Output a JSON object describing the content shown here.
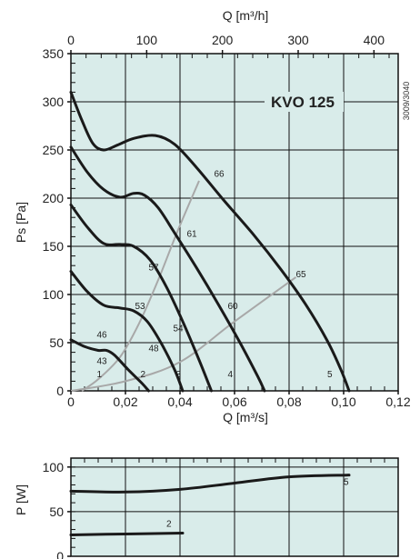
{
  "colors": {
    "plot_background": "#d9ecea",
    "grid": "#111111",
    "fan_curve": "#1a1a1a",
    "system_curve": "#a8a8a8"
  },
  "chart_data": [
    {
      "type": "line",
      "title": "KVO 125",
      "code": "3009/3040",
      "xlabel": "Q [m³/s]",
      "ylabel": "Ps [Pa]",
      "x2label": "Q [m³/h]",
      "xlim": [
        0,
        0.12
      ],
      "ylim": [
        0,
        350
      ],
      "x2lim": [
        0,
        432
      ],
      "xticks": [
        "0",
        "0,02",
        "0,04",
        "0,06",
        "0,08",
        "0,10",
        "0,12"
      ],
      "xtick_values": [
        0,
        0.02,
        0.04,
        0.06,
        0.08,
        0.1,
        0.12
      ],
      "x2ticks": [
        "0",
        "100",
        "200",
        "300",
        "400"
      ],
      "x2tick_values": [
        0,
        100,
        200,
        300,
        400
      ],
      "yticks": [
        "0",
        "50",
        "100",
        "150",
        "200",
        "250",
        "300",
        "350"
      ],
      "ytick_values": [
        0,
        50,
        100,
        150,
        200,
        250,
        300,
        350
      ],
      "grid": true,
      "series": [
        {
          "name": "1",
          "kind": "fan",
          "points": [
            [
              0,
              53
            ],
            [
              0.005,
              46
            ],
            [
              0.01,
              42
            ],
            [
              0.013,
              42
            ],
            [
              0.016,
              37
            ],
            [
              0.021,
              22
            ],
            [
              0.026,
              8
            ],
            [
              0.0285,
              0
            ]
          ]
        },
        {
          "name": "2",
          "kind": "fan",
          "points": [
            [
              0,
              124
            ],
            [
              0.006,
              103
            ],
            [
              0.012,
              89
            ],
            [
              0.018,
              86
            ],
            [
              0.023,
              83
            ],
            [
              0.028,
              72
            ],
            [
              0.033,
              50
            ],
            [
              0.038,
              22
            ],
            [
              0.041,
              0
            ]
          ]
        },
        {
          "name": "3",
          "kind": "fan",
          "points": [
            [
              0,
              193
            ],
            [
              0.006,
              170
            ],
            [
              0.012,
              153
            ],
            [
              0.018,
              152
            ],
            [
              0.023,
              150
            ],
            [
              0.029,
              136
            ],
            [
              0.035,
              108
            ],
            [
              0.041,
              72
            ],
            [
              0.047,
              32
            ],
            [
              0.0515,
              0
            ]
          ]
        },
        {
          "name": "4",
          "kind": "fan",
          "points": [
            [
              0,
              253
            ],
            [
              0.006,
              227
            ],
            [
              0.012,
              209
            ],
            [
              0.018,
              201
            ],
            [
              0.023,
              205
            ],
            [
              0.027,
              203
            ],
            [
              0.032,
              190
            ],
            [
              0.038,
              164
            ],
            [
              0.046,
              128
            ],
            [
              0.054,
              90
            ],
            [
              0.062,
              50
            ],
            [
              0.0685,
              15
            ],
            [
              0.071,
              0
            ]
          ]
        },
        {
          "name": "5",
          "kind": "fan",
          "points": [
            [
              0,
              310
            ],
            [
              0.004,
              281
            ],
            [
              0.008,
              257
            ],
            [
              0.012,
              250
            ],
            [
              0.017,
              255
            ],
            [
              0.023,
              262
            ],
            [
              0.031,
              265
            ],
            [
              0.038,
              256
            ],
            [
              0.046,
              232
            ],
            [
              0.056,
              198
            ],
            [
              0.067,
              162
            ],
            [
              0.077,
              126
            ],
            [
              0.086,
              90
            ],
            [
              0.094,
              52
            ],
            [
              0.099,
              22
            ],
            [
              0.102,
              0
            ]
          ]
        },
        {
          "name": "sys-low",
          "kind": "system",
          "points": [
            [
              0,
              0
            ],
            [
              0.02,
              10
            ],
            [
              0.04,
              30
            ],
            [
              0.06,
              72
            ],
            [
              0.0825,
              118
            ]
          ]
        },
        {
          "name": "sys-high",
          "kind": "system",
          "points": [
            [
              0.004,
              0
            ],
            [
              0.01,
              12
            ],
            [
              0.018,
              35
            ],
            [
              0.025,
              70
            ],
            [
              0.032,
              115
            ],
            [
              0.039,
              165
            ],
            [
              0.047,
              218
            ]
          ]
        }
      ],
      "curve_labels": [
        {
          "text": "1",
          "x": 0.0095,
          "y": 14
        },
        {
          "text": "2",
          "x": 0.0255,
          "y": 14
        },
        {
          "text": "3",
          "x": 0.0385,
          "y": 14
        },
        {
          "text": "4",
          "x": 0.0575,
          "y": 14
        },
        {
          "text": "5",
          "x": 0.094,
          "y": 14
        },
        {
          "text": "43",
          "x": 0.0095,
          "y": 28
        },
        {
          "text": "46",
          "x": 0.0095,
          "y": 55
        },
        {
          "text": "48",
          "x": 0.0285,
          "y": 41
        },
        {
          "text": "53",
          "x": 0.0235,
          "y": 85
        },
        {
          "text": "54",
          "x": 0.0375,
          "y": 62
        },
        {
          "text": "57",
          "x": 0.0285,
          "y": 125
        },
        {
          "text": "60",
          "x": 0.0575,
          "y": 85
        },
        {
          "text": "61",
          "x": 0.0425,
          "y": 160
        },
        {
          "text": "65",
          "x": 0.0825,
          "y": 118
        },
        {
          "text": "66",
          "x": 0.0525,
          "y": 222
        }
      ]
    },
    {
      "type": "line",
      "ylabel": "P [W]",
      "xlim": [
        0,
        0.12
      ],
      "ylim": [
        0,
        110
      ],
      "yticks": [
        "0",
        "50",
        "100"
      ],
      "ytick_values": [
        0,
        50,
        100
      ],
      "grid": true,
      "series": [
        {
          "name": "5",
          "points": [
            [
              0,
              73
            ],
            [
              0.02,
              72
            ],
            [
              0.04,
              75
            ],
            [
              0.06,
              82
            ],
            [
              0.08,
              89
            ],
            [
              0.102,
              91
            ]
          ]
        },
        {
          "name": "2",
          "points": [
            [
              0,
              24
            ],
            [
              0.02,
              25
            ],
            [
              0.041,
              26
            ]
          ]
        }
      ],
      "curve_labels": [
        {
          "text": "5",
          "x": 0.1,
          "y": 80
        },
        {
          "text": "2",
          "x": 0.035,
          "y": 33
        }
      ]
    }
  ]
}
